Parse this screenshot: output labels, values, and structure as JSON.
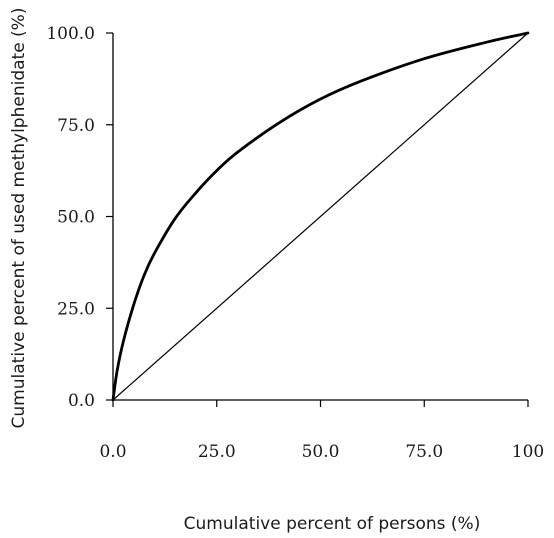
{
  "chart_data": {
    "type": "line",
    "title": "",
    "xlabel": "Cumulative percent of persons (%)",
    "ylabel": "Cumulative percent of used methylphenidate (%)",
    "xlim": [
      0,
      100
    ],
    "ylim": [
      0,
      100
    ],
    "x_ticks": [
      "0.0",
      "25.0",
      "50.0",
      "75.0",
      "100"
    ],
    "y_ticks": [
      "0.0",
      "25.0",
      "50.0",
      "75.0",
      "100.0"
    ],
    "x_tick_values": [
      0,
      25,
      50,
      75,
      100
    ],
    "y_tick_values": [
      0,
      25,
      50,
      75,
      100
    ],
    "grid": false,
    "legend": "none",
    "series": [
      {
        "style": "thick",
        "color": "#000000",
        "points": [
          [
            0,
            0
          ],
          [
            1,
            8
          ],
          [
            2.5,
            16
          ],
          [
            5,
            26
          ],
          [
            7.5,
            34
          ],
          [
            10,
            40
          ],
          [
            15,
            49.5
          ],
          [
            20,
            56.5
          ],
          [
            25,
            62.5
          ],
          [
            30,
            67.5
          ],
          [
            40,
            75.5
          ],
          [
            50,
            82
          ],
          [
            60,
            87
          ],
          [
            75,
            93
          ],
          [
            90,
            97.5
          ],
          [
            100,
            100
          ]
        ]
      },
      {
        "style": "thin",
        "color": "#000000",
        "points": [
          [
            0,
            0
          ],
          [
            100,
            100
          ]
        ]
      }
    ]
  }
}
